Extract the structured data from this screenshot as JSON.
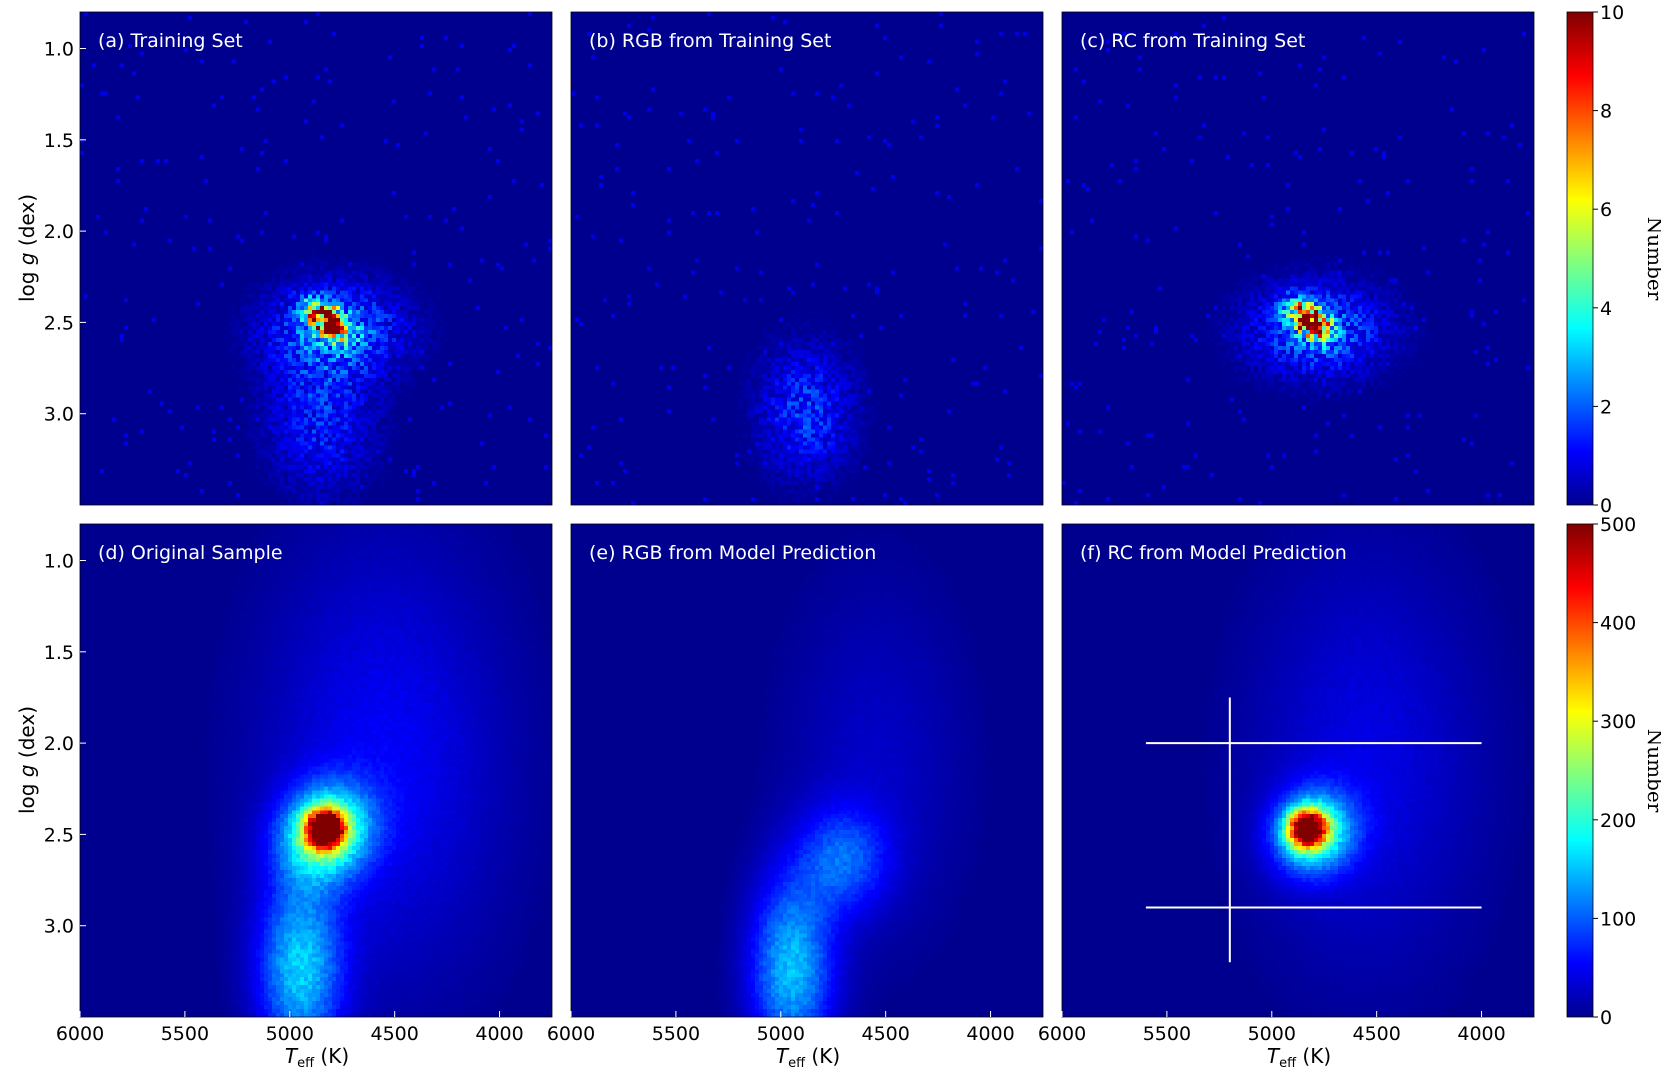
{
  "figure": {
    "row_ylabel_main": "log ",
    "row_ylabel_g": "g",
    "row_ylabel_unit": " (dex)",
    "xlabel_T": "T",
    "xlabel_sub": "eff",
    "xlabel_unit": " (K)"
  },
  "colors": {
    "background": "#00008f",
    "overlay_lines": "#ffffff",
    "text_on_plot": "#ffffff",
    "colormap": "jet"
  },
  "chart_data": [
    {
      "type": "heatmap",
      "panel": "a",
      "title": "(a)  Training Set",
      "row": "top",
      "xlim": [
        6000,
        3750
      ],
      "ylim": [
        3.5,
        0.8
      ],
      "xticks": [],
      "yticks": [
        "1.0",
        "1.5",
        "2.0",
        "2.5",
        "3.0"
      ],
      "clim": [
        0,
        10
      ],
      "blobs": [
        {
          "teff": 4820,
          "logg": 2.5,
          "s_teff": 75,
          "s_logg": 0.05,
          "peak": 10,
          "angle": 38
        },
        {
          "teff": 4780,
          "logg": 2.55,
          "s_teff": 230,
          "s_logg": 0.18,
          "peak": 2.2,
          "angle": 0
        },
        {
          "teff": 4850,
          "logg": 3.05,
          "s_teff": 180,
          "s_logg": 0.28,
          "peak": 1.4,
          "angle": 0
        }
      ]
    },
    {
      "type": "heatmap",
      "panel": "b",
      "title": "(b)  RGB from Training Set",
      "row": "top",
      "xlim": [
        6000,
        3750
      ],
      "ylim": [
        3.5,
        0.8
      ],
      "xticks": [],
      "yticks": [],
      "clim": [
        0,
        10
      ],
      "blobs": [
        {
          "teff": 4880,
          "logg": 3.0,
          "s_teff": 160,
          "s_logg": 0.25,
          "peak": 1.6,
          "angle": 0
        }
      ]
    },
    {
      "type": "heatmap",
      "panel": "c",
      "title": "(c)  RC from Training Set",
      "row": "top",
      "xlim": [
        6000,
        3750
      ],
      "ylim": [
        3.5,
        0.8
      ],
      "xticks": [],
      "yticks": [],
      "clim": [
        0,
        10
      ],
      "blobs": [
        {
          "teff": 4820,
          "logg": 2.5,
          "s_teff": 75,
          "s_logg": 0.05,
          "peak": 10,
          "angle": 38
        },
        {
          "teff": 4780,
          "logg": 2.55,
          "s_teff": 230,
          "s_logg": 0.18,
          "peak": 2.2,
          "angle": 0
        }
      ]
    },
    {
      "type": "heatmap",
      "panel": "d",
      "title": "(d)  Original Sample",
      "row": "bottom",
      "xlim": [
        6000,
        3750
      ],
      "ylim": [
        3.5,
        0.8
      ],
      "xticks": [
        "6000",
        "5500",
        "5000",
        "4500",
        "4000"
      ],
      "yticks": [
        "1.0",
        "1.5",
        "2.0",
        "2.5",
        "3.0"
      ],
      "clim": [
        0,
        500
      ],
      "blobs": [
        {
          "teff": 4830,
          "logg": 2.48,
          "s_teff": 60,
          "s_logg": 0.07,
          "peak": 500,
          "angle": 40
        },
        {
          "teff": 4830,
          "logg": 2.5,
          "s_teff": 140,
          "s_logg": 0.18,
          "peak": 230,
          "angle": 35
        },
        {
          "teff": 4950,
          "logg": 3.25,
          "s_teff": 140,
          "s_logg": 0.35,
          "peak": 150,
          "angle": 0
        },
        {
          "teff": 4550,
          "logg": 2.1,
          "s_teff": 400,
          "s_logg": 0.85,
          "peak": 55,
          "angle": 0
        }
      ]
    },
    {
      "type": "heatmap",
      "panel": "e",
      "title": "(e)  RGB from Model Prediction",
      "row": "bottom",
      "xlim": [
        6000,
        3750
      ],
      "ylim": [
        3.5,
        0.8
      ],
      "xticks": [
        "6000",
        "5500",
        "5000",
        "4500",
        "4000"
      ],
      "yticks": [],
      "clim": [
        0,
        500
      ],
      "blobs": [
        {
          "teff": 4950,
          "logg": 3.25,
          "s_teff": 140,
          "s_logg": 0.35,
          "peak": 150,
          "angle": 0
        },
        {
          "teff": 4700,
          "logg": 2.65,
          "s_teff": 150,
          "s_logg": 0.2,
          "peak": 90,
          "angle": 0
        },
        {
          "teff": 4550,
          "logg": 2.1,
          "s_teff": 300,
          "s_logg": 0.7,
          "peak": 30,
          "angle": 0
        }
      ]
    },
    {
      "type": "heatmap",
      "panel": "f",
      "title": "(f)  RC from Model Prediction",
      "row": "bottom",
      "xlim": [
        6000,
        3750
      ],
      "ylim": [
        3.5,
        0.8
      ],
      "xticks": [
        "6000",
        "5500",
        "5000",
        "4500",
        "4000"
      ],
      "yticks": [],
      "clim": [
        0,
        500
      ],
      "blobs": [
        {
          "teff": 4830,
          "logg": 2.48,
          "s_teff": 60,
          "s_logg": 0.07,
          "peak": 460,
          "angle": 40
        },
        {
          "teff": 4800,
          "logg": 2.5,
          "s_teff": 130,
          "s_logg": 0.16,
          "peak": 200,
          "angle": 35
        },
        {
          "teff": 4550,
          "logg": 2.1,
          "s_teff": 380,
          "s_logg": 0.8,
          "peak": 45,
          "angle": 0
        }
      ],
      "overlay_lines": [
        {
          "x": [
            5600,
            4000
          ],
          "y": [
            2.0,
            2.0
          ]
        },
        {
          "x": [
            5600,
            4000
          ],
          "y": [
            2.9,
            2.9
          ]
        },
        {
          "x": [
            5200,
            5200
          ],
          "y": [
            1.75,
            3.2
          ]
        }
      ]
    }
  ],
  "colorbars": [
    {
      "row": "top",
      "ticks": [
        "0",
        "2",
        "4",
        "6",
        "8",
        "10"
      ],
      "values": [
        0,
        2,
        4,
        6,
        8,
        10
      ],
      "label": "Number",
      "clim": [
        0,
        10
      ]
    },
    {
      "row": "bottom",
      "ticks": [
        "0",
        "100",
        "200",
        "300",
        "400",
        "500"
      ],
      "values": [
        0,
        100,
        200,
        300,
        400,
        500
      ],
      "label": "Number",
      "clim": [
        0,
        500
      ]
    }
  ]
}
